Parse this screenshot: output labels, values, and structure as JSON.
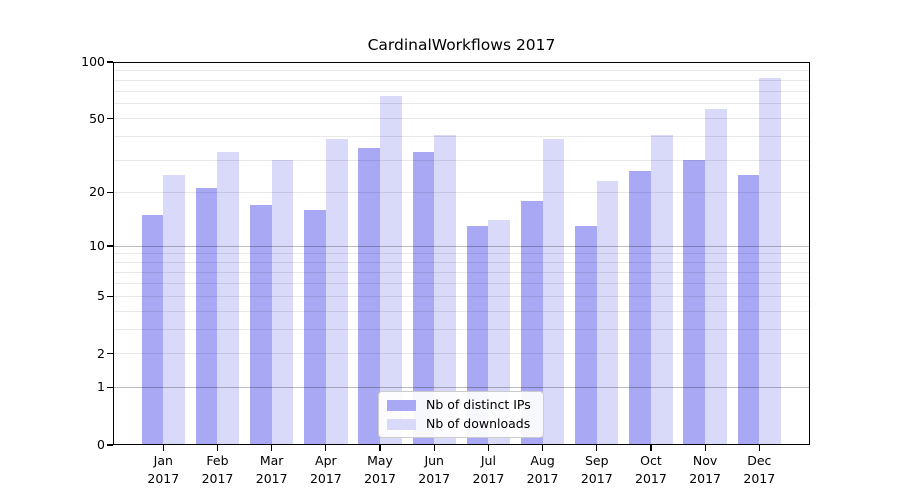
{
  "figure": {
    "background": "#ffffff",
    "text_color": "#000000"
  },
  "chart_data": {
    "type": "bar",
    "title": "CardinalWorkflows 2017",
    "categories": [
      "Jan 2017",
      "Feb 2017",
      "Mar 2017",
      "Apr 2017",
      "May 2017",
      "Jun 2017",
      "Jul 2017",
      "Aug 2017",
      "Sep 2017",
      "Oct 2017",
      "Nov 2017",
      "Dec 2017"
    ],
    "series": [
      {
        "name": "Nb of distinct IPs",
        "color": "#a8a8f5",
        "values": [
          15,
          21,
          17,
          16,
          35,
          33,
          13,
          18,
          13,
          26,
          30,
          25
        ]
      },
      {
        "name": "Nb of downloads",
        "color": "#d9d9fa",
        "values": [
          25,
          33,
          30,
          39,
          66,
          41,
          14,
          39,
          23,
          41,
          56,
          82
        ]
      }
    ],
    "xlabel": "",
    "ylabel": "",
    "yscale": "log1p",
    "ylim": [
      0,
      100
    ],
    "yticks": [
      0,
      1,
      2,
      5,
      10,
      20,
      50,
      100
    ],
    "grid": "both",
    "grid_major_values": [
      1,
      10
    ],
    "grid_minor_values": [
      2,
      3,
      4,
      5,
      6,
      7,
      8,
      9,
      20,
      30,
      40,
      50,
      60,
      70,
      80,
      90
    ],
    "legend_position": "lower center"
  }
}
